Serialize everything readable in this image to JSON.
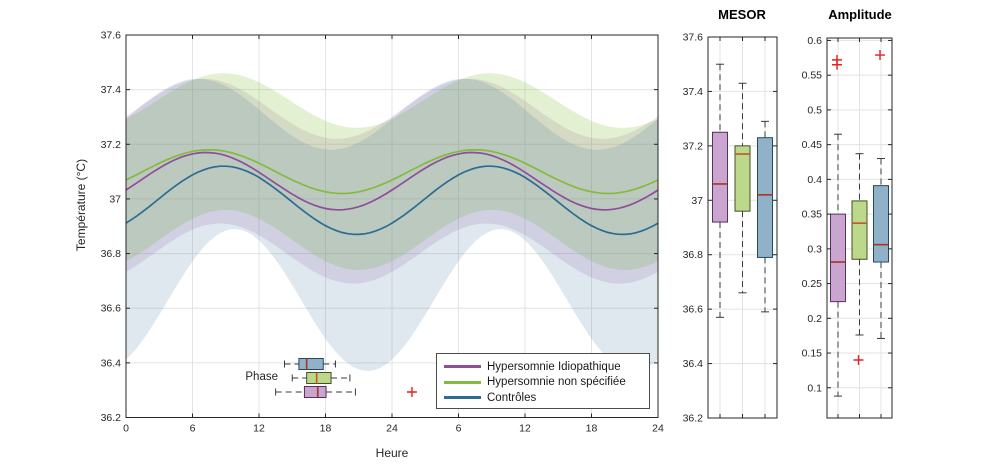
{
  "figure_background": "#ffffff",
  "colors": {
    "purple": {
      "line": "#8F4D9B",
      "fill": "#C9A5CF",
      "edge": "#553061",
      "band": "rgba(126,47,142,0.14)",
      "median": "#A93226"
    },
    "green": {
      "line": "#84BA3F",
      "fill": "#BCD98B",
      "edge": "#42511F",
      "band": "rgba(140,191,63,0.24)",
      "median": "#C0562A"
    },
    "blue": {
      "line": "#2C6C93",
      "fill": "#8FB2C9",
      "edge": "#264962",
      "band": "rgba(76,127,166,0.18)",
      "median": "#A93226"
    },
    "outlier": "#E32222",
    "grid": "#E3E3E3",
    "axis": "#262626",
    "text": "#262626",
    "whisker": "#3A3A3A"
  },
  "legend": {
    "items": [
      {
        "label": "Hypersomnie Idiopathique",
        "color": "#8F4D9B"
      },
      {
        "label": "Hypersomnie non spécifiée",
        "color": "#84BA3F"
      },
      {
        "label": "Contrôles",
        "color": "#2C6C93"
      }
    ]
  },
  "chart_data": [
    {
      "type": "line",
      "title": "",
      "xlabel": "Heure",
      "ylabel": "Température (°C)",
      "xlim": [
        0,
        48
      ],
      "ylim": [
        36.2,
        37.6
      ],
      "grid": true,
      "xticks": {
        "values": [
          0,
          6,
          12,
          18,
          24,
          30,
          36,
          42,
          48
        ],
        "labels": [
          "0",
          "6",
          "12",
          "18",
          "24",
          "6",
          "12",
          "18",
          "24"
        ]
      },
      "yticks": {
        "values": [
          36.2,
          36.4,
          36.6,
          36.8,
          37.0,
          37.2,
          37.4,
          37.6
        ],
        "labels": [
          "36.2",
          "36.4",
          "36.6",
          "36.8",
          "37",
          "37.2",
          "37.4",
          "37.6"
        ]
      },
      "series_note": "cosinor curves: value(t) = mesor + amplitude*cos(2*pi*(t-peak_hour)/24), t in hours 0-48; band = shaded CI",
      "series": [
        {
          "name": "Hypersomnie Idiopathique",
          "color_key": "purple",
          "model": {
            "mesor": 37.065,
            "amplitude": 0.105,
            "peak_hour": 7.2
          },
          "band": {
            "upper": {
              "mesor": 37.33,
              "amplitude": 0.11,
              "peak_hour": 7.0
            },
            "lower": {
              "mesor": 36.8,
              "amplitude": 0.11,
              "peak_hour": 8.5
            }
          }
        },
        {
          "name": "Hypersomnie non spécifiée",
          "color_key": "green",
          "model": {
            "mesor": 37.1,
            "amplitude": 0.08,
            "peak_hour": 7.5
          },
          "band": {
            "upper": {
              "mesor": 37.36,
              "amplitude": 0.1,
              "peak_hour": 8.8
            },
            "lower": {
              "mesor": 36.85,
              "amplitude": 0.11,
              "peak_hour": 9.0
            }
          }
        },
        {
          "name": "Contrôles",
          "color_key": "blue",
          "model": {
            "mesor": 36.995,
            "amplitude": 0.125,
            "peak_hour": 8.8
          },
          "band": {
            "upper": {
              "mesor": 37.31,
              "amplitude": 0.13,
              "peak_hour": 6.5
            },
            "lower": {
              "mesor": 36.63,
              "amplitude": 0.26,
              "peak_hour": 9.8
            }
          }
        }
      ]
    },
    {
      "type": "box",
      "title": "MESOR",
      "ylim": [
        36.2,
        37.6
      ],
      "yticks": {
        "values": [
          36.2,
          36.4,
          36.6,
          36.8,
          37.0,
          37.2,
          37.4,
          37.6
        ],
        "labels": [
          "36.2",
          "36.4",
          "36.6",
          "36.8",
          "37",
          "37.2",
          "37.4",
          "37.6"
        ]
      },
      "groups": [
        {
          "name": "Hypersomnie Idiopathique",
          "color_key": "purple",
          "whisker_low": 36.57,
          "q1": 36.92,
          "median": 37.06,
          "q3": 37.25,
          "whisker_high": 37.5,
          "outliers": []
        },
        {
          "name": "Hypersomnie non spécifiée",
          "color_key": "green",
          "whisker_low": 36.66,
          "q1": 36.96,
          "median": 37.17,
          "q3": 37.2,
          "whisker_high": 37.43,
          "outliers": []
        },
        {
          "name": "Contrôles",
          "color_key": "blue",
          "whisker_low": 36.59,
          "q1": 36.79,
          "median": 37.02,
          "q3": 37.23,
          "whisker_high": 37.29,
          "outliers": []
        }
      ]
    },
    {
      "type": "box",
      "title": "Amplitude",
      "ylim": [
        0.0565,
        0.6035
      ],
      "yticks": {
        "values": [
          0.1,
          0.15,
          0.2,
          0.25,
          0.3,
          0.35,
          0.4,
          0.45,
          0.5,
          0.55,
          0.6
        ],
        "labels": [
          "0.1",
          "0.15",
          "0.2",
          "0.25",
          "0.3",
          "0.35",
          "0.4",
          "0.45",
          "0.5",
          "0.55",
          "0.6"
        ]
      },
      "groups": [
        {
          "name": "Hypersomnie Idiopathique",
          "color_key": "purple",
          "whisker_low": 0.088,
          "q1": 0.224,
          "median": 0.281,
          "q3": 0.35,
          "whisker_high": 0.465,
          "outliers": [
            0.565,
            0.572
          ]
        },
        {
          "name": "Hypersomnie non spécifiée",
          "color_key": "green",
          "whisker_low": 0.176,
          "q1": 0.285,
          "median": 0.337,
          "q3": 0.369,
          "whisker_high": 0.437,
          "outliers": [
            0.14
          ]
        },
        {
          "name": "Contrôles",
          "color_key": "blue",
          "whisker_low": 0.171,
          "q1": 0.281,
          "median": 0.306,
          "q3": 0.391,
          "whisker_high": 0.43,
          "outliers": [
            0.579
          ]
        }
      ]
    },
    {
      "type": "box",
      "orientation": "horizontal",
      "label": "Phase",
      "unit": "heures",
      "groups": [
        {
          "name": "Contrôles",
          "color_key": "blue",
          "whisker_low": 14.3,
          "q1": 15.6,
          "median": 16.3,
          "q3": 17.8,
          "whisker_high": 18.9,
          "outliers": []
        },
        {
          "name": "Hypersomnie non spécifiée",
          "color_key": "green",
          "whisker_low": 15.0,
          "q1": 16.3,
          "median": 17.2,
          "q3": 18.5,
          "whisker_high": 20.2,
          "outliers": []
        },
        {
          "name": "Hypersomnie Idiopathique",
          "color_key": "purple",
          "whisker_low": 13.5,
          "q1": 16.1,
          "median": 17.3,
          "q3": 18.05,
          "whisker_high": 20.7,
          "outliers": [
            25.8
          ]
        }
      ]
    }
  ]
}
